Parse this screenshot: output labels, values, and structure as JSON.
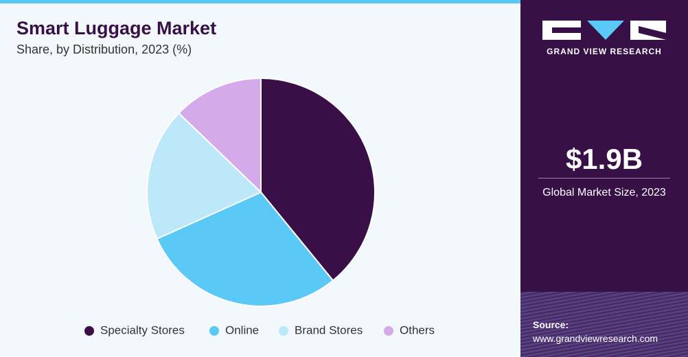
{
  "chart_data": {
    "type": "pie",
    "title": "Smart Luggage Market",
    "subtitle": "Share, by Distribution, 2023 (%)",
    "categories": [
      "Specialty Stores",
      "Online",
      "Brand Stores",
      "Others"
    ],
    "values": [
      39.1,
      29.2,
      18.9,
      12.8
    ],
    "colors": [
      "#3a0f48",
      "#5bc9f6",
      "#bde8f9",
      "#d5aaea"
    ]
  },
  "sidebar": {
    "brand": "GRAND VIEW RESEARCH",
    "market_size": "$1.9B",
    "market_size_label": "Global Market Size, 2023",
    "source_label": "Source:",
    "source_url": "www.grandviewresearch.com"
  }
}
